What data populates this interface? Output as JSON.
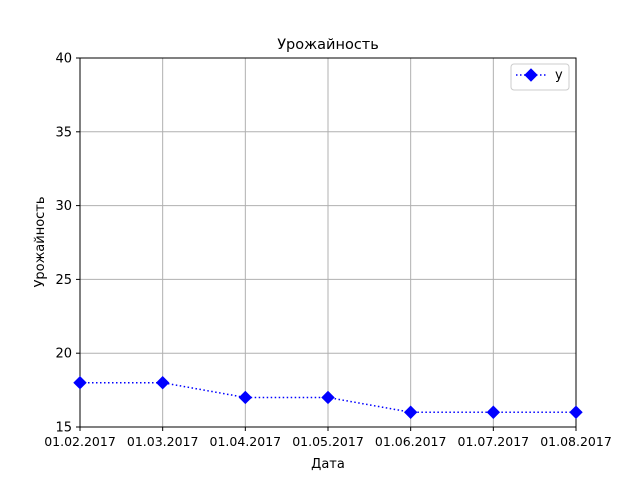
{
  "chart_data": {
    "type": "line",
    "title": "Урожайность",
    "xlabel": "Дата",
    "ylabel": "Урожайность",
    "categories": [
      "01.02.2017",
      "01.03.2017",
      "01.04.2017",
      "01.05.2017",
      "01.06.2017",
      "01.07.2017",
      "01.08.2017"
    ],
    "series": [
      {
        "name": "y",
        "values": [
          18,
          18,
          17,
          17,
          16,
          16,
          16
        ],
        "color": "#0000ff",
        "line_style": "dotted",
        "marker": "diamond"
      }
    ],
    "ylim": [
      15,
      40
    ],
    "yticks": [
      15,
      20,
      25,
      30,
      35,
      40
    ],
    "grid": true,
    "legend_position": "top-right"
  },
  "colors": {
    "grid": "#b0b0b0",
    "axis": "#000000",
    "background": "#ffffff"
  }
}
